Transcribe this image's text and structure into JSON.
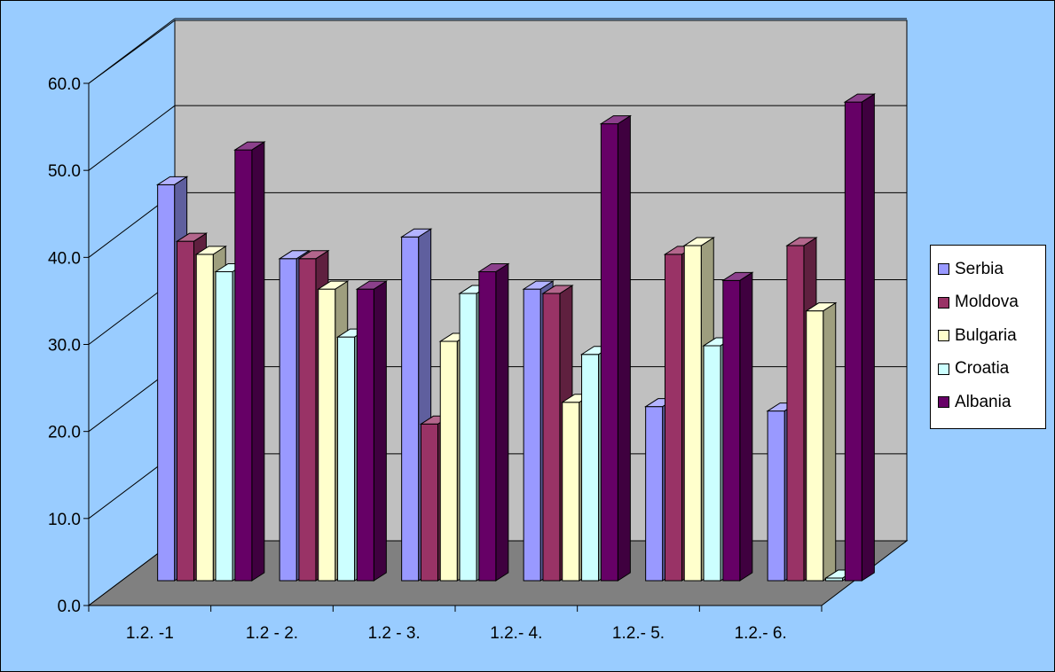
{
  "chart_data": {
    "type": "bar",
    "title": "",
    "xlabel": "",
    "ylabel": "",
    "ylim": [
      0,
      60
    ],
    "y_ticks": [
      "0.0",
      "10.0",
      "20.0",
      "30.0",
      "40.0",
      "50.0",
      "60.0"
    ],
    "categories": [
      "1.2. -1",
      "1.2 - 2.",
      "1.2 - 3.",
      "1.2.- 4.",
      "1.2.- 5.",
      "1.2.- 6."
    ],
    "series": [
      {
        "name": "Serbia",
        "color": "#9999ff",
        "values": [
          45.5,
          37.0,
          39.5,
          33.5,
          20.0,
          19.5
        ]
      },
      {
        "name": "Moldova",
        "color": "#993366",
        "values": [
          39.0,
          37.0,
          18.0,
          33.0,
          37.5,
          38.5
        ]
      },
      {
        "name": "Bulgaria",
        "color": "#ffffcc",
        "values": [
          37.5,
          33.5,
          27.5,
          20.5,
          38.5,
          31.0
        ]
      },
      {
        "name": "Croatia",
        "color": "#ccffff",
        "values": [
          35.5,
          28.0,
          33.0,
          26.0,
          27.0,
          0.3
        ]
      },
      {
        "name": "Albania",
        "color": "#660066",
        "values": [
          49.5,
          33.5,
          35.5,
          52.5,
          34.5,
          55.0
        ]
      }
    ],
    "grid": true,
    "legend": "right",
    "style": "3d-clustered-column"
  }
}
